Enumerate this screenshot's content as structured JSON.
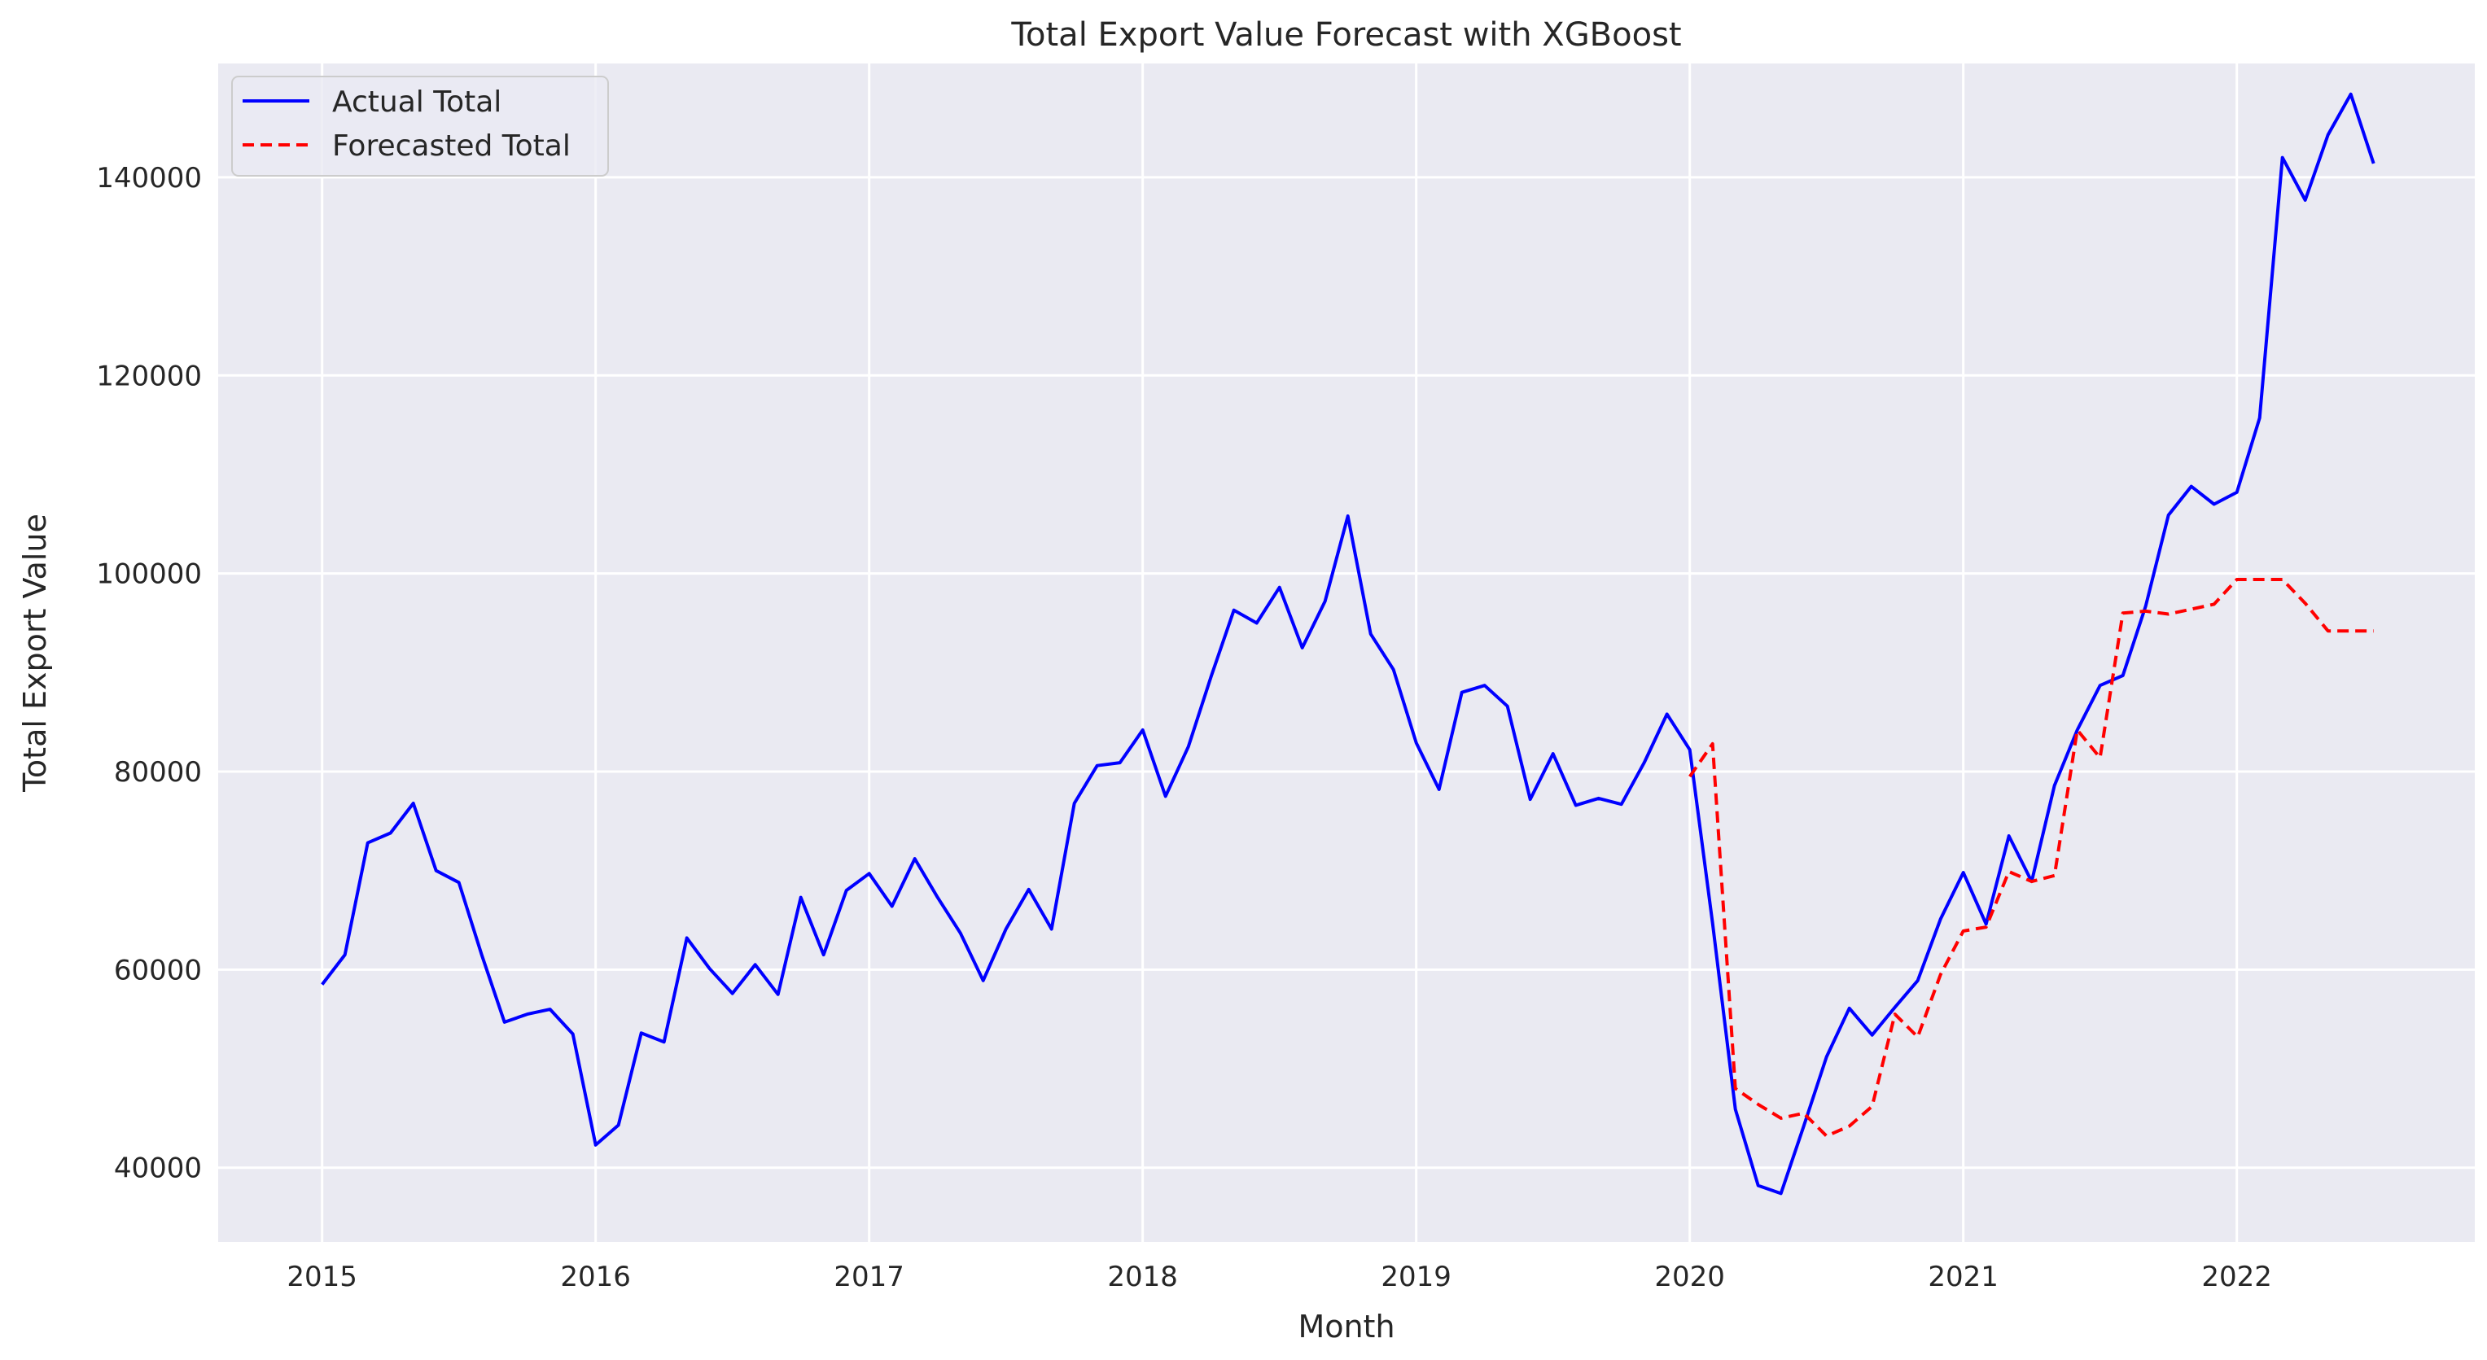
{
  "chart_data": {
    "type": "line",
    "title": "Total Export Value Forecast with XGBoost",
    "xlabel": "Month",
    "ylabel": "Total Export Value",
    "xlim": [
      2014.62,
      2022.87
    ],
    "ylim": [
      32500,
      151500
    ],
    "x_ticks": [
      2015,
      2016,
      2017,
      2018,
      2019,
      2020,
      2021,
      2022
    ],
    "x_tick_labels": [
      "2015",
      "2016",
      "2017",
      "2018",
      "2019",
      "2020",
      "2021",
      "2022"
    ],
    "y_ticks": [
      40000,
      60000,
      80000,
      100000,
      120000,
      140000
    ],
    "y_tick_labels": [
      "40000",
      "60000",
      "80000",
      "100000",
      "120000",
      "140000"
    ],
    "grid": true,
    "legend_position": "top-left",
    "series": [
      {
        "name": "Actual Total",
        "color": "#0000ff",
        "style": "solid",
        "start": 2015,
        "step_months": 1,
        "values": [
          58500,
          61500,
          72800,
          73800,
          76800,
          70000,
          68800,
          61500,
          54700,
          55500,
          56000,
          53500,
          42300,
          44300,
          53600,
          52700,
          63200,
          60100,
          57600,
          60500,
          57500,
          67300,
          61500,
          68000,
          69700,
          66400,
          71200,
          67300,
          63700,
          58900,
          64100,
          68100,
          64100,
          76800,
          80600,
          80900,
          84200,
          77500,
          82500,
          89600,
          96300,
          95000,
          98600,
          92500,
          97200,
          105800,
          93900,
          90300,
          82900,
          78200,
          88000,
          88700,
          86600,
          77200,
          81800,
          76600,
          77300,
          76700,
          80900,
          85800,
          82200,
          64700,
          45900,
          38200,
          37400,
          44200,
          51200,
          56100,
          53400,
          56200,
          58900,
          65100,
          69800,
          64600,
          73500,
          68900,
          78600,
          84200,
          88700,
          89700,
          96700,
          105900,
          108800,
          107000,
          108200,
          115700,
          142000,
          137700,
          144300,
          148400,
          141400
        ]
      },
      {
        "name": "Forecasted Total",
        "color": "#ff0000",
        "style": "dashed",
        "start": 2020,
        "step_months": 1,
        "values": [
          79500,
          82800,
          48000,
          46400,
          45000,
          45500,
          43200,
          44200,
          46200,
          55500,
          53200,
          59500,
          63900,
          64300,
          69900,
          68900,
          69500,
          84200,
          81400,
          96000,
          96200,
          95900,
          96400,
          96900,
          99400,
          99400,
          99400,
          97000,
          94200,
          94200,
          94200
        ]
      }
    ]
  }
}
